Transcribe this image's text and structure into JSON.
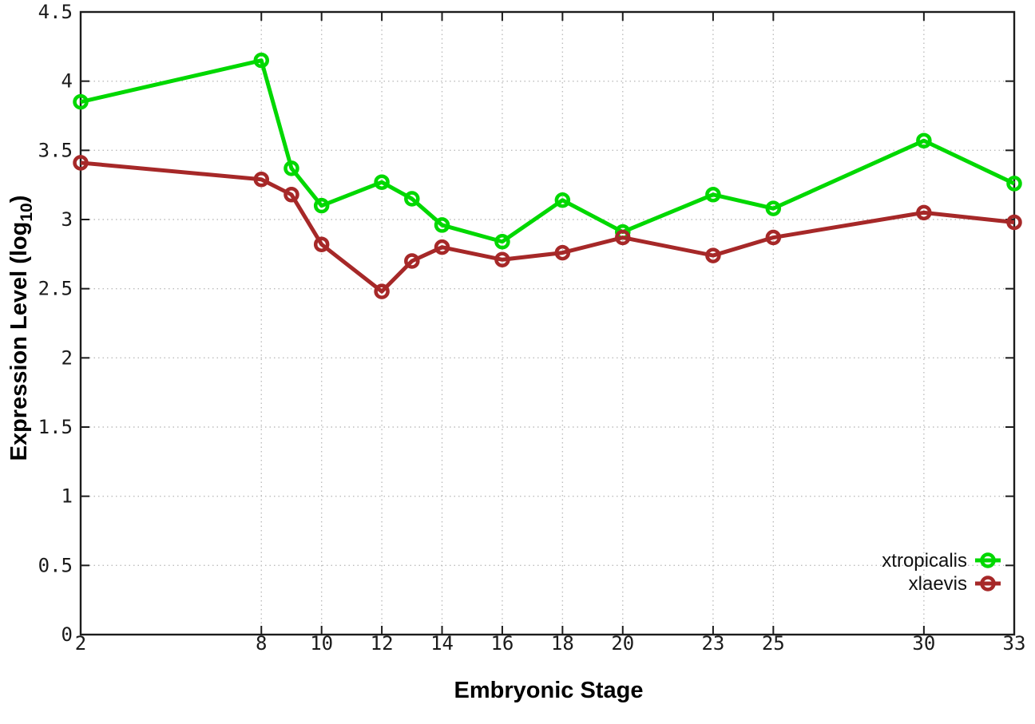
{
  "chart_data": {
    "type": "line",
    "title": "",
    "xlabel": "Embryonic Stage",
    "ylabel": "Expression Level (log10)",
    "ylabel_parts": [
      "Expression Level (log",
      "10",
      ")"
    ],
    "x": [
      2,
      8,
      9,
      10,
      12,
      13,
      14,
      16,
      18,
      20,
      23,
      25,
      30,
      33
    ],
    "x_tick_labels": [
      "2",
      "8",
      "10",
      "12",
      "14",
      "16",
      "18",
      "20",
      "23",
      "25",
      "30",
      "33"
    ],
    "y_tick_labels": [
      "0",
      "0.5",
      "1",
      "1.5",
      "2",
      "2.5",
      "3",
      "3.5",
      "4",
      "4.5"
    ],
    "xlim": [
      2,
      33
    ],
    "ylim": [
      0,
      4.5
    ],
    "grid": true,
    "legend_position": "inside-bottom-right",
    "series": [
      {
        "name": "xtropicalis",
        "color": "#00d800",
        "marker": "open-circle",
        "values": [
          3.85,
          4.15,
          3.37,
          3.1,
          3.27,
          3.15,
          2.96,
          2.84,
          3.14,
          2.91,
          3.18,
          3.08,
          3.57,
          3.26
        ]
      },
      {
        "name": "xlaevis",
        "color": "#a62828",
        "marker": "open-circle",
        "values": [
          3.41,
          3.29,
          3.18,
          2.82,
          2.48,
          2.7,
          2.8,
          2.71,
          2.76,
          2.87,
          2.74,
          2.87,
          3.05,
          2.98
        ]
      }
    ],
    "colors": {
      "grid": "#bdbdbd",
      "axis": "#1c1c1c",
      "text": "#1a1a1a",
      "background": "#ffffff"
    }
  }
}
